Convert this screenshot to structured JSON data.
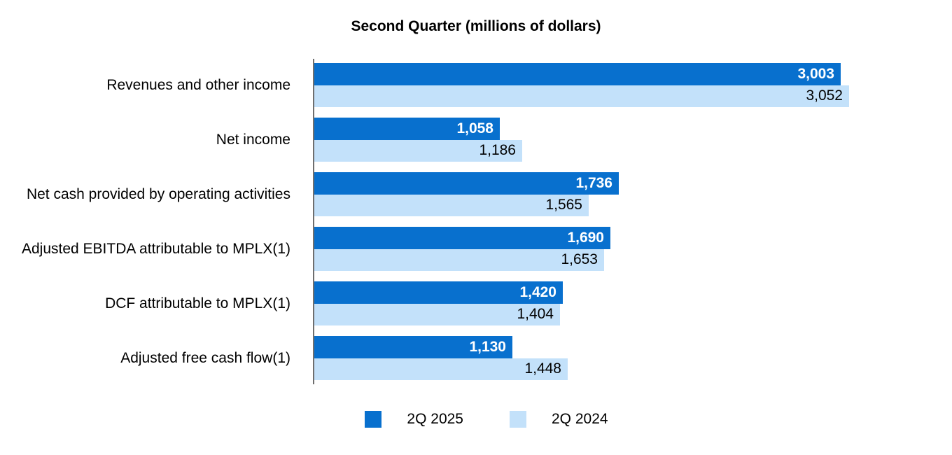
{
  "chart_data": {
    "type": "bar",
    "orientation": "horizontal",
    "title": "Second Quarter (millions of dollars)",
    "categories": [
      "Revenues and other income",
      "Net income",
      "Net cash provided by operating activities",
      "Adjusted EBITDA attributable to MPLX(1)",
      "DCF attributable to MPLX(1)",
      "Adjusted free cash flow(1)"
    ],
    "series": [
      {
        "name": "2Q 2025",
        "color": "#0870CE",
        "values": [
          3003,
          1058,
          1736,
          1690,
          1420,
          1130
        ],
        "value_labels": [
          "3,003",
          "1,058",
          "1,736",
          "1,690",
          "1,420",
          "1,130"
        ]
      },
      {
        "name": "2Q 2024",
        "color": "#C3E1FA",
        "values": [
          3052,
          1186,
          1565,
          1653,
          1404,
          1448
        ],
        "value_labels": [
          "3,052",
          "1,186",
          "1,565",
          "1,653",
          "1,404",
          "1,448"
        ]
      }
    ],
    "xlim": [
      0,
      3052
    ],
    "grid": false,
    "legend_position": "bottom",
    "axis_color": "#6e6e6e",
    "value_labels_inside_bars": true
  }
}
